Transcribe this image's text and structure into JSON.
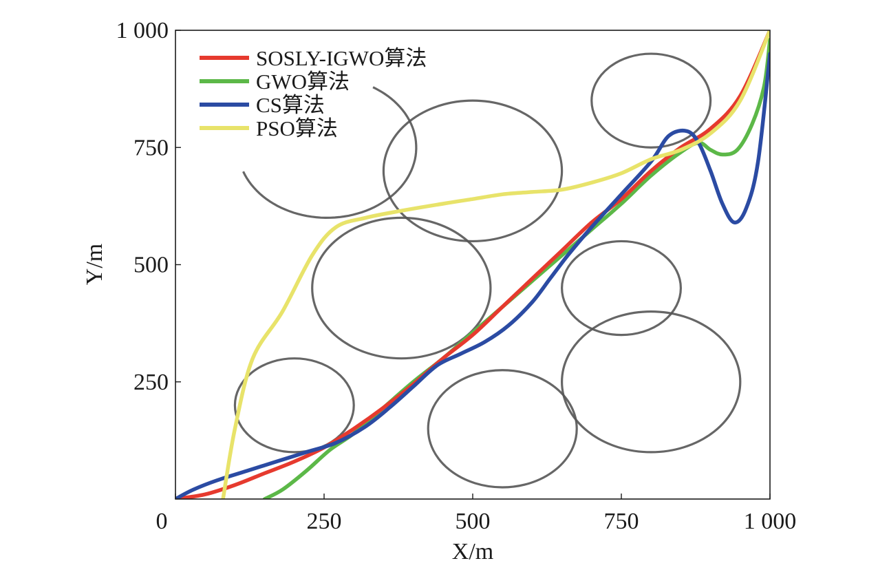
{
  "chart_data": {
    "type": "line",
    "xlabel": "X/m",
    "ylabel": "Y/m",
    "xlim": [
      0,
      1000
    ],
    "ylim": [
      0,
      1000
    ],
    "x_ticks": [
      {
        "value": 0,
        "label": "0"
      },
      {
        "value": 250,
        "label": "250"
      },
      {
        "value": 500,
        "label": "500"
      },
      {
        "value": 750,
        "label": "750"
      },
      {
        "value": 1000,
        "label": "1 000"
      }
    ],
    "y_ticks": [
      {
        "value": 250,
        "label": "250"
      },
      {
        "value": 500,
        "label": "500"
      },
      {
        "value": 750,
        "label": "750"
      },
      {
        "value": 1000,
        "label": "1 000"
      }
    ],
    "legend_position": "top-left",
    "obstacles": [
      {
        "cx": 200,
        "cy": 200,
        "r": 100
      },
      {
        "cx": 380,
        "cy": 450,
        "r": 150
      },
      {
        "cx": 500,
        "cy": 700,
        "r": 150
      },
      {
        "cx": 550,
        "cy": 150,
        "r": 125
      },
      {
        "cx": 750,
        "cy": 450,
        "r": 100
      },
      {
        "cx": 800,
        "cy": 250,
        "r": 150
      },
      {
        "cx": 800,
        "cy": 850,
        "r": 100
      },
      {
        "cx": 255,
        "cy": 750,
        "r": 150,
        "arc_from_deg": 200,
        "arc_to_deg": 420
      }
    ],
    "series": [
      {
        "name": "SOSLY-IGWO算法",
        "color": "#e63a2e",
        "points": [
          [
            0,
            0
          ],
          [
            50,
            10
          ],
          [
            100,
            30
          ],
          [
            150,
            55
          ],
          [
            200,
            80
          ],
          [
            250,
            110
          ],
          [
            300,
            150
          ],
          [
            350,
            195
          ],
          [
            400,
            245
          ],
          [
            450,
            300
          ],
          [
            500,
            350
          ],
          [
            550,
            410
          ],
          [
            600,
            470
          ],
          [
            650,
            530
          ],
          [
            700,
            590
          ],
          [
            750,
            640
          ],
          [
            800,
            700
          ],
          [
            850,
            750
          ],
          [
            900,
            790
          ],
          [
            950,
            860
          ],
          [
            1000,
            1000
          ]
        ]
      },
      {
        "name": "GWO算法",
        "color": "#5cb848",
        "points": [
          [
            150,
            0
          ],
          [
            180,
            20
          ],
          [
            220,
            60
          ],
          [
            260,
            105
          ],
          [
            300,
            140
          ],
          [
            350,
            195
          ],
          [
            400,
            250
          ],
          [
            450,
            300
          ],
          [
            500,
            355
          ],
          [
            550,
            410
          ],
          [
            600,
            465
          ],
          [
            650,
            520
          ],
          [
            700,
            575
          ],
          [
            750,
            630
          ],
          [
            800,
            690
          ],
          [
            850,
            740
          ],
          [
            880,
            760
          ],
          [
            900,
            745
          ],
          [
            920,
            735
          ],
          [
            945,
            745
          ],
          [
            970,
            800
          ],
          [
            990,
            880
          ],
          [
            1000,
            980
          ]
        ]
      },
      {
        "name": "CS算法",
        "color": "#2b4ba3",
        "points": [
          [
            0,
            0
          ],
          [
            30,
            20
          ],
          [
            70,
            40
          ],
          [
            120,
            60
          ],
          [
            170,
            80
          ],
          [
            220,
            100
          ],
          [
            270,
            120
          ],
          [
            320,
            155
          ],
          [
            360,
            195
          ],
          [
            400,
            240
          ],
          [
            440,
            285
          ],
          [
            480,
            310
          ],
          [
            520,
            335
          ],
          [
            560,
            370
          ],
          [
            600,
            420
          ],
          [
            630,
            470
          ],
          [
            660,
            520
          ],
          [
            700,
            580
          ],
          [
            750,
            650
          ],
          [
            800,
            720
          ],
          [
            830,
            775
          ],
          [
            860,
            785
          ],
          [
            880,
            760
          ],
          [
            900,
            700
          ],
          [
            920,
            630
          ],
          [
            940,
            590
          ],
          [
            960,
            620
          ],
          [
            980,
            720
          ],
          [
            1000,
            950
          ]
        ]
      },
      {
        "name": "PSO算法",
        "color": "#e8e36a",
        "points": [
          [
            80,
            0
          ],
          [
            100,
            150
          ],
          [
            130,
            300
          ],
          [
            180,
            400
          ],
          [
            230,
            520
          ],
          [
            270,
            580
          ],
          [
            320,
            600
          ],
          [
            380,
            615
          ],
          [
            450,
            630
          ],
          [
            500,
            640
          ],
          [
            550,
            650
          ],
          [
            600,
            655
          ],
          [
            650,
            660
          ],
          [
            700,
            675
          ],
          [
            750,
            695
          ],
          [
            800,
            725
          ],
          [
            850,
            745
          ],
          [
            900,
            780
          ],
          [
            950,
            850
          ],
          [
            1000,
            1000
          ]
        ]
      }
    ]
  }
}
